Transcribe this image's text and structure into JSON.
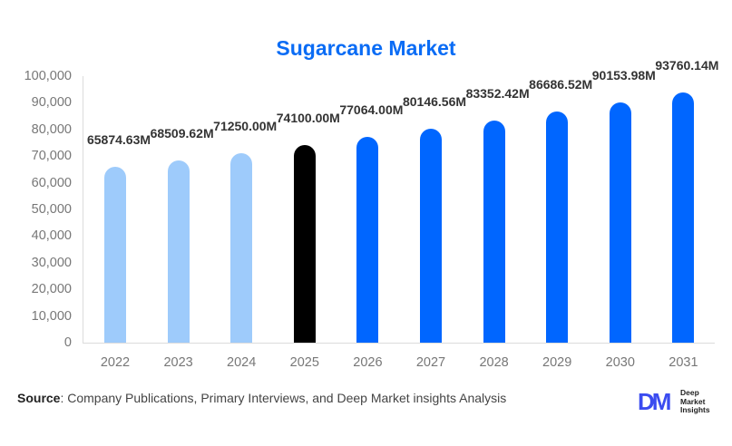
{
  "title": "Sugarcane Market",
  "chart_data": {
    "type": "bar",
    "title": "Sugarcane Market",
    "xlabel": "",
    "ylabel": "",
    "ylim": [
      0,
      100000
    ],
    "yticks": [
      "0",
      "10,000",
      "20,000",
      "30,000",
      "40,000",
      "50,000",
      "60,000",
      "70,000",
      "80,000",
      "90,000",
      "100,000"
    ],
    "categories": [
      "2022",
      "2023",
      "2024",
      "2025",
      "2026",
      "2027",
      "2028",
      "2029",
      "2030",
      "2031"
    ],
    "values": [
      65874.63,
      68509.62,
      71250.0,
      74100.0,
      77064.0,
      80146.56,
      83352.42,
      86686.52,
      90153.98,
      93760.14
    ],
    "value_labels": [
      "65874.63M",
      "68509.62M",
      "71250.00M",
      "74100.00M",
      "77064.00M",
      "80146.56M",
      "83352.42M",
      "86686.52M",
      "90153.98M",
      "93760.14M"
    ],
    "bar_colors": [
      "#9ecbfb",
      "#9ecbfb",
      "#9ecbfb",
      "#000000",
      "#0066ff",
      "#0066ff",
      "#0066ff",
      "#0066ff",
      "#0066ff",
      "#0066ff"
    ],
    "grid": false,
    "legend": "none"
  },
  "colors": {
    "title": "#0a6cf5",
    "historical": "#9ecbfb",
    "base_year": "#000000",
    "forecast": "#0066ff"
  },
  "footer": {
    "source_label": "Source",
    "source_text": ": Company Publications, Primary Interviews, and Deep Market insights Analysis"
  },
  "logo": {
    "mark": "DM",
    "line1": "Deep",
    "line2": "Market",
    "line3": "Insights"
  }
}
